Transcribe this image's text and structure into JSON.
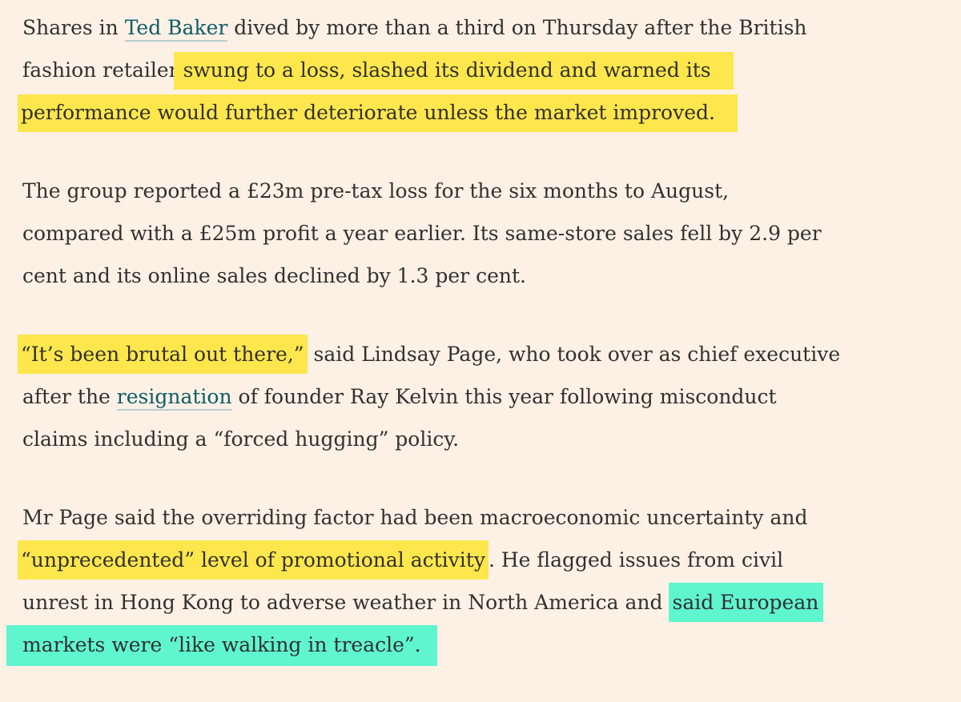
{
  "paragraphs": [
    [
      "Shares in ",
      "Ted Baker",
      " dived by more than a third on Thursday after the British",
      "fashion retailer",
      " swung to a loss, slashed its dividend and warned its",
      "performance would further deteriorate unless the market improved."
    ],
    [
      "The group reported a £23m pre-tax loss for the six months to August,",
      "compared with a £25m profit a year earlier. Its same-store sales fell by 2.9 per",
      "cent and its online sales declined by 1.3 per cent."
    ],
    [
      "“It’s been brutal out there,”",
      " said Lindsay Page, who took over as chief executive",
      "after the ",
      "resignation",
      " of founder Ray Kelvin this year following misconduct",
      "claims including a “forced hugging” policy."
    ],
    [
      "Mr Page said the overriding factor had been macroeconomic uncertainty and",
      "“unprecedented” level of promotional activity",
      ". He flagged issues from civil",
      "unrest in Hong Kong to adverse weather in North America and ",
      "said European",
      "markets were “like walking in treacle”."
    ]
  ]
}
